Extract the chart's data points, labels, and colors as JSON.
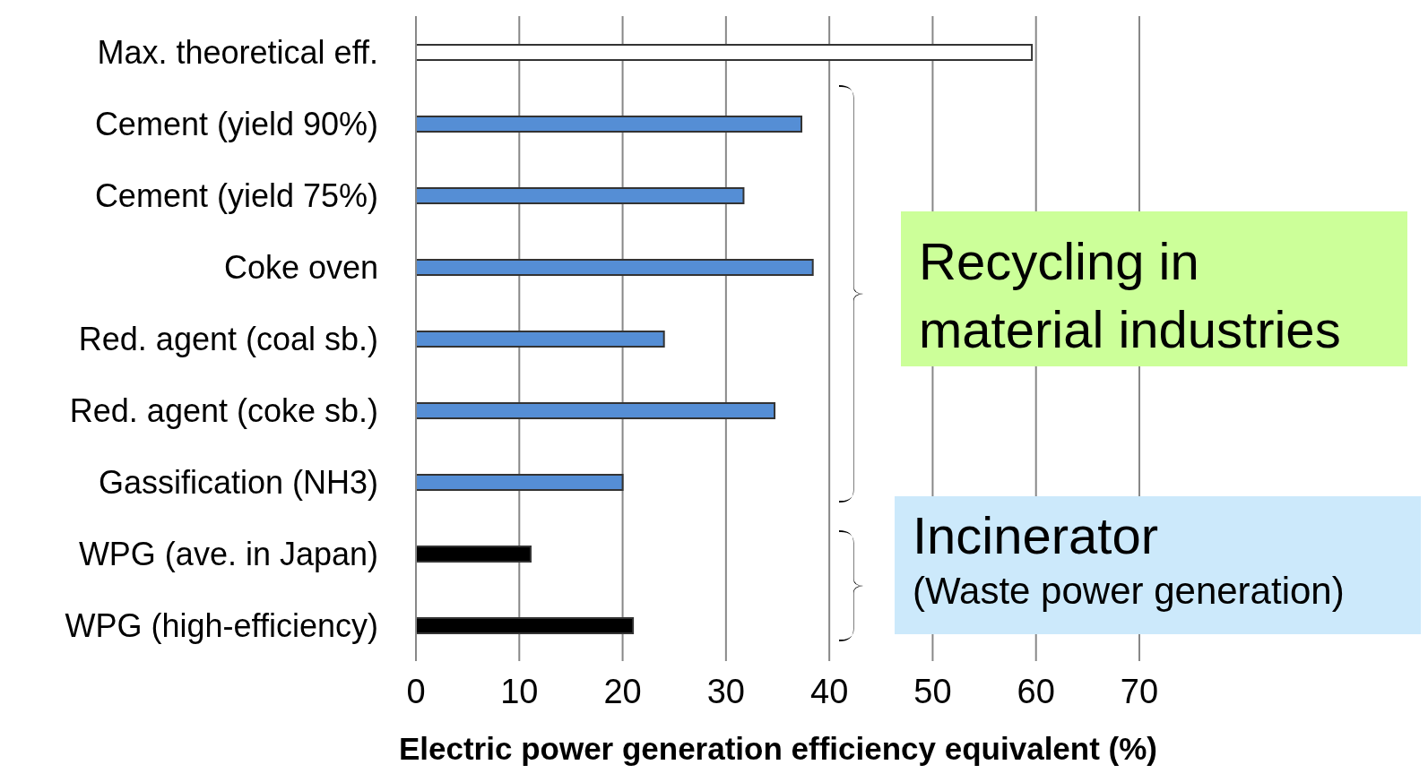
{
  "chart_data": {
    "type": "bar",
    "orientation": "horizontal",
    "xlabel": "Electric power generation efficiency equivalent (%)",
    "categories": [
      "Max. theoretical eff.",
      "Cement (yield 90%)",
      "Cement (yield 75%)",
      "Coke oven",
      "Red. agent (coal sb.)",
      "Red. agent (coke sb.)",
      "Gassification (NH3)",
      "WPG (ave. in Japan)",
      "WPG (high-efficiency)"
    ],
    "values": [
      59.6,
      37.3,
      31.7,
      38.4,
      24.0,
      34.7,
      20.0,
      11.1,
      21.0
    ],
    "colors": [
      "#ffffff",
      "#558ed5",
      "#558ed5",
      "#558ed5",
      "#558ed5",
      "#558ed5",
      "#558ed5",
      "#000000",
      "#000000"
    ],
    "xlim": [
      0,
      70
    ],
    "xticks": [
      0,
      10,
      20,
      30,
      40,
      50,
      60,
      70
    ],
    "grid": "x",
    "annotations": [
      "Recycling in material industries",
      "Incinerator",
      "(Waste power generation)"
    ]
  }
}
